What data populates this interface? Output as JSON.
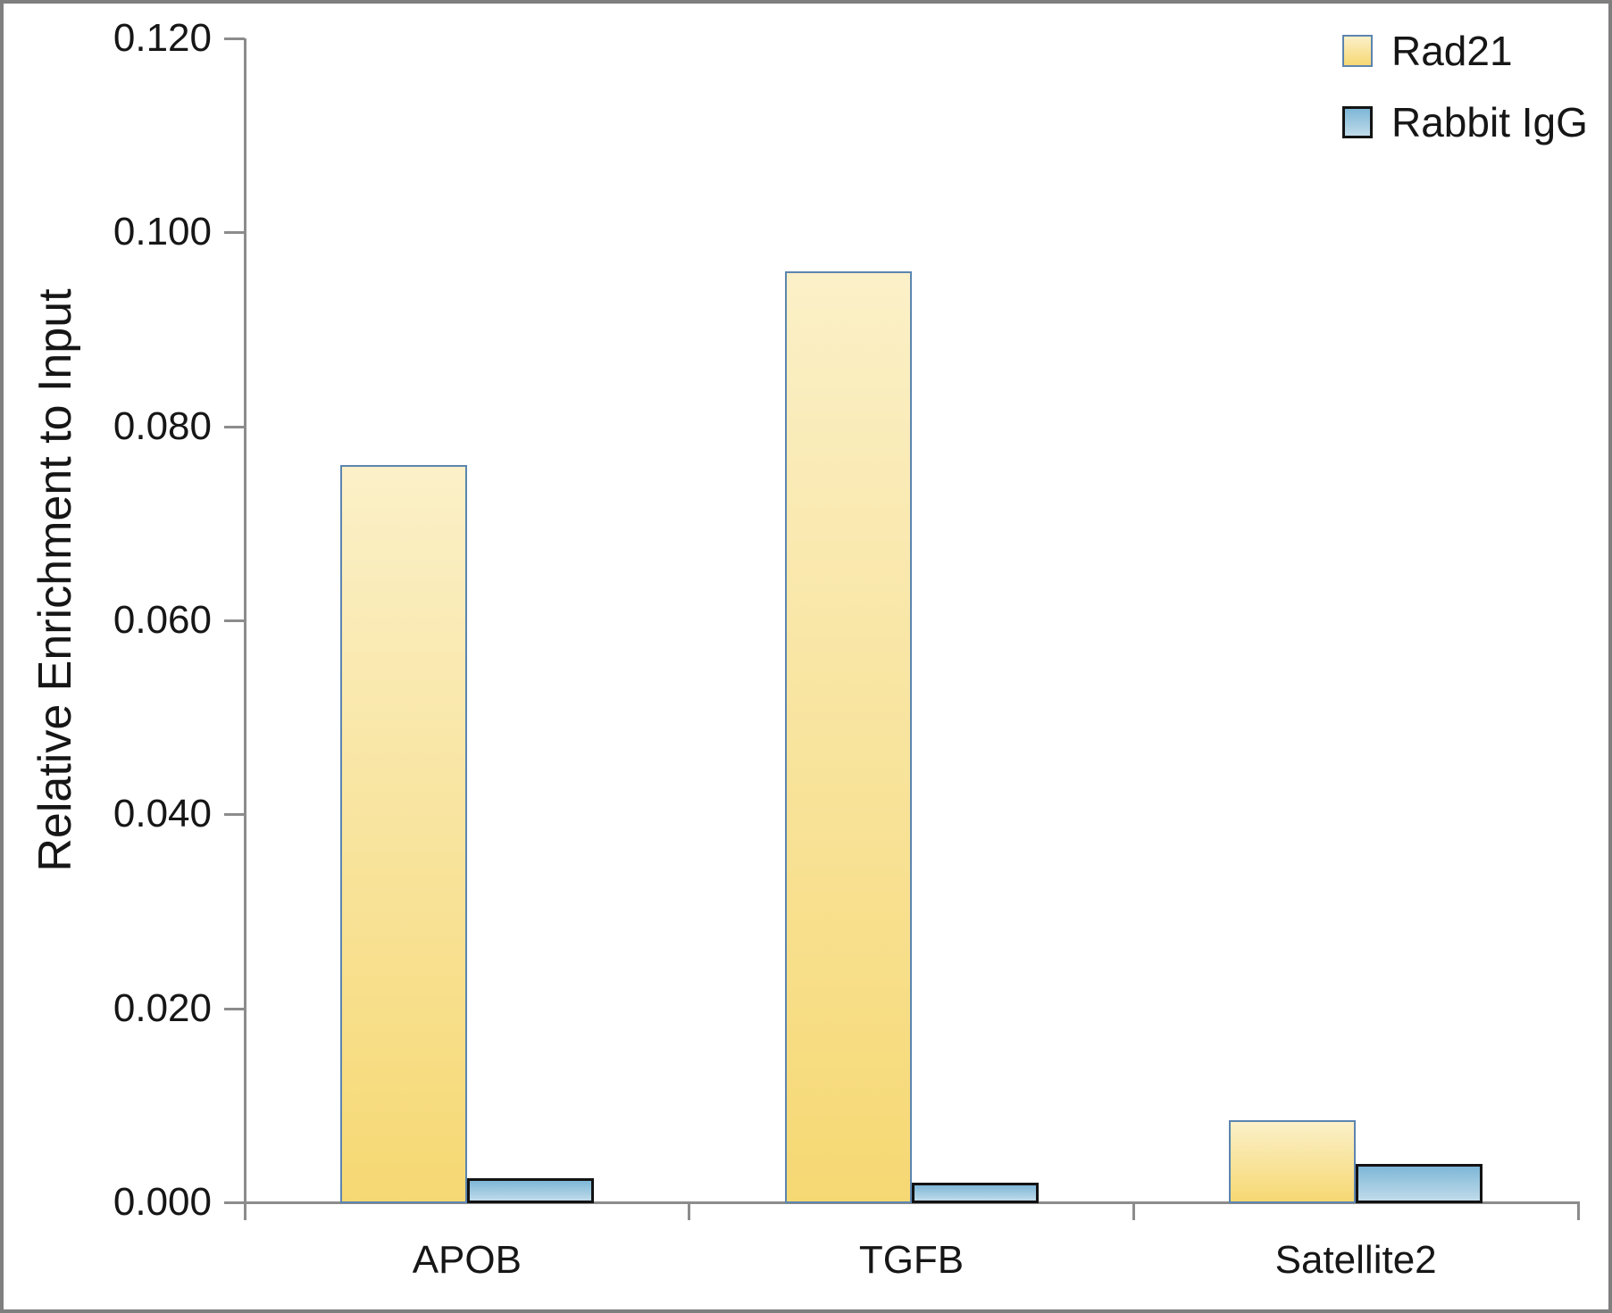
{
  "figure": {
    "border_color": "#7f7f7f",
    "background_color": "#ffffff",
    "axis_color": "#8c8c8c",
    "text_color": "#161616"
  },
  "chart_data": {
    "type": "bar",
    "title": "",
    "categories": [
      "APOB",
      "TGFB",
      "Satellite2"
    ],
    "series": [
      {
        "name": "Rad21",
        "values": [
          0.076,
          0.096,
          0.0085
        ],
        "fill_top": "#fbf0c8",
        "fill_bottom": "#f6d873",
        "border_color": "#5c85b0"
      },
      {
        "name": "Rabbit IgG",
        "values": [
          0.0025,
          0.002,
          0.004
        ],
        "fill_top": "#7eb7d7",
        "fill_bottom": "#c0dbea",
        "border_color": "#131313"
      }
    ],
    "xlabel": "",
    "ylabel": "Relative Enrichment to Input",
    "ylim": [
      0,
      0.12
    ],
    "ytick_step": 0.02,
    "ytick_labels": [
      "0.000",
      "0.020",
      "0.040",
      "0.060",
      "0.080",
      "0.100",
      "0.120"
    ],
    "ytick_format_decimals": 3,
    "grid": false,
    "legend_position": "top-right"
  }
}
